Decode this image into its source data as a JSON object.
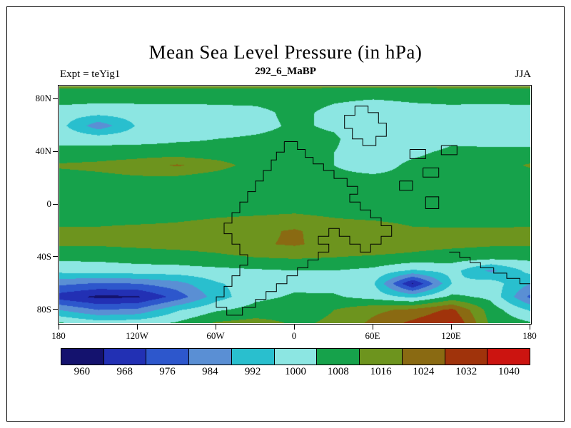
{
  "header": {
    "title": "Mean Sea Level Pressure (in hPa)",
    "subtitle": "292_6_MaBP",
    "experiment_label": "Expt = teYig1",
    "season_label": "JJA"
  },
  "chart_data": {
    "type": "heatmap",
    "subtype": "filled-contour-map",
    "title": "Mean Sea Level Pressure (in hPa)",
    "subtitle": "292_6_MaBP",
    "experiment": "teYig1",
    "season": "JJA",
    "units": "hPa",
    "lon_range": [
      -180,
      180
    ],
    "lat_range": [
      -90,
      90
    ],
    "x_tick_labels": [
      "180",
      "120W",
      "60W",
      "0",
      "60E",
      "120E",
      "180"
    ],
    "x_tick_lons": [
      -180,
      -120,
      -60,
      0,
      60,
      120,
      180
    ],
    "y_tick_labels": [
      "80N",
      "40N",
      "0",
      "40S",
      "80S"
    ],
    "y_tick_lats": [
      80,
      40,
      0,
      -40,
      -80
    ],
    "colorbar": {
      "tick_labels": [
        "960",
        "968",
        "976",
        "984",
        "992",
        "1000",
        "1008",
        "1016",
        "1024",
        "1032",
        "1040"
      ],
      "tick_values": [
        960,
        968,
        976,
        984,
        992,
        1000,
        1008,
        1016,
        1024,
        1032,
        1040
      ],
      "colors": [
        "#14126e",
        "#2230b4",
        "#2d57cc",
        "#5a8fd4",
        "#29bfce",
        "#8ce6e2",
        "#16a24b",
        "#6d941e",
        "#8a6a12",
        "#a0330b",
        "#cc1410"
      ]
    },
    "level_boundaries_hpa": [
      964,
      972,
      980,
      988,
      996,
      1004,
      1012,
      1020,
      1028,
      1036
    ],
    "grid": {
      "lons": [
        -180,
        -150,
        -120,
        -90,
        -60,
        -30,
        0,
        30,
        60,
        90,
        120,
        150,
        180
      ],
      "lats": [
        90,
        80,
        70,
        60,
        50,
        40,
        30,
        20,
        10,
        0,
        -10,
        -20,
        -30,
        -40,
        -50,
        -60,
        -70,
        -80,
        -90
      ],
      "values_hpa": [
        [
          1013,
          1013,
          1013,
          1013,
          1013,
          1013,
          1013,
          1013,
          1013,
          1013,
          1013,
          1013,
          1013
        ],
        [
          1007,
          1006,
          1006,
          1006,
          1006,
          1006,
          1007,
          1005,
          1004,
          1005,
          1006,
          1006,
          1007
        ],
        [
          1000,
          999,
          1000,
          1000,
          1001,
          1002,
          1006,
          1002,
          999,
          1001,
          1001,
          1000,
          1000
        ],
        [
          999,
          983,
          997,
          999,
          1000,
          1002,
          1005,
          1003,
          998,
          999,
          1001,
          999,
          999
        ],
        [
          1002,
          1001,
          1001,
          1003,
          1004,
          1005,
          1006,
          1005,
          999,
          1000,
          1003,
          1001,
          1001
        ],
        [
          1006,
          1007,
          1008,
          1007,
          1006,
          1006,
          1006,
          1004,
          1001,
          1003,
          1005,
          1006,
          1006
        ],
        [
          1013,
          1014,
          1016,
          1021,
          1016,
          1008,
          1006,
          1004,
          1002,
          1005,
          1006,
          1008,
          1013
        ],
        [
          1009,
          1010,
          1011,
          1010,
          1007,
          1005,
          1005,
          1005,
          1005,
          1005,
          1005,
          1006,
          1008
        ],
        [
          1006,
          1006,
          1005,
          1005,
          1005,
          1005,
          1006,
          1005,
          1005,
          1005,
          1005,
          1006,
          1006
        ],
        [
          1006,
          1006,
          1006,
          1007,
          1007,
          1007,
          1008,
          1007,
          1006,
          1005,
          1005,
          1006,
          1006
        ],
        [
          1010,
          1010,
          1010,
          1011,
          1012,
          1013,
          1014,
          1012,
          1011,
          1010,
          1009,
          1009,
          1010
        ],
        [
          1013,
          1013,
          1014,
          1014,
          1015,
          1018,
          1021,
          1016,
          1016,
          1013,
          1013,
          1013,
          1013
        ],
        [
          1013,
          1013,
          1014,
          1015,
          1016,
          1019,
          1021,
          1017,
          1017,
          1015,
          1014,
          1013,
          1013
        ],
        [
          1006,
          1006,
          1007,
          1008,
          1010,
          1012,
          1013,
          1012,
          1011,
          1010,
          1008,
          1007,
          1006
        ],
        [
          999,
          1000,
          1001,
          1001,
          1002,
          1003,
          1004,
          1004,
          1002,
          995,
          999,
          986,
          999
        ],
        [
          982,
          979,
          980,
          985,
          995,
          1000,
          1002,
          1001,
          997,
          963,
          996,
          1000,
          988
        ],
        [
          968,
          962,
          963,
          975,
          992,
          1002,
          1005,
          1005,
          1001,
          994,
          1006,
          1002,
          978
        ],
        [
          988,
          980,
          982,
          995,
          1003,
          1007,
          1009,
          1012,
          1018,
          1022,
          1030,
          1008,
          995
        ],
        [
          1005,
          1000,
          1001,
          1005,
          1013,
          1015,
          1011,
          1013,
          1022,
          1030,
          1037,
          1010,
          1005
        ]
      ]
    },
    "coastlines": [
      [
        [
          -8,
          48
        ],
        [
          2,
          48
        ],
        [
          2,
          42
        ],
        [
          8,
          42
        ],
        [
          8,
          36
        ],
        [
          14,
          36
        ],
        [
          14,
          31
        ],
        [
          22,
          31
        ],
        [
          22,
          26
        ],
        [
          30,
          26
        ],
        [
          30,
          20
        ],
        [
          40,
          20
        ],
        [
          40,
          14
        ],
        [
          48,
          14
        ],
        [
          48,
          8
        ],
        [
          42,
          8
        ],
        [
          42,
          2
        ],
        [
          50,
          2
        ],
        [
          50,
          -4
        ],
        [
          58,
          -4
        ],
        [
          58,
          -10
        ],
        [
          66,
          -10
        ],
        [
          66,
          -16
        ],
        [
          74,
          -16
        ],
        [
          74,
          -24
        ],
        [
          66,
          -24
        ],
        [
          66,
          -30
        ],
        [
          58,
          -30
        ],
        [
          58,
          -36
        ],
        [
          50,
          -36
        ],
        [
          50,
          -30
        ],
        [
          42,
          -30
        ],
        [
          42,
          -24
        ],
        [
          34,
          -24
        ],
        [
          34,
          -18
        ],
        [
          26,
          -18
        ],
        [
          26,
          -24
        ],
        [
          18,
          -24
        ],
        [
          18,
          -30
        ],
        [
          26,
          -30
        ],
        [
          26,
          -36
        ],
        [
          18,
          -36
        ],
        [
          18,
          -42
        ],
        [
          10,
          -42
        ],
        [
          10,
          -48
        ],
        [
          2,
          -48
        ],
        [
          2,
          -54
        ],
        [
          -6,
          -54
        ],
        [
          -6,
          -60
        ],
        [
          -14,
          -60
        ],
        [
          -14,
          -66
        ],
        [
          -22,
          -66
        ],
        [
          -22,
          -72
        ],
        [
          -30,
          -72
        ],
        [
          -30,
          -78
        ],
        [
          -40,
          -78
        ],
        [
          -40,
          -84
        ],
        [
          -52,
          -84
        ],
        [
          -52,
          -78
        ],
        [
          -60,
          -78
        ],
        [
          -60,
          -70
        ],
        [
          -54,
          -70
        ],
        [
          -54,
          -62
        ],
        [
          -48,
          -62
        ],
        [
          -48,
          -54
        ],
        [
          -42,
          -54
        ],
        [
          -42,
          -46
        ],
        [
          -36,
          -46
        ],
        [
          -36,
          -38
        ],
        [
          -42,
          -38
        ],
        [
          -42,
          -30
        ],
        [
          -48,
          -30
        ],
        [
          -48,
          -22
        ],
        [
          -54,
          -22
        ],
        [
          -54,
          -14
        ],
        [
          -48,
          -14
        ],
        [
          -48,
          -6
        ],
        [
          -42,
          -6
        ],
        [
          -42,
          2
        ],
        [
          -36,
          2
        ],
        [
          -36,
          10
        ],
        [
          -30,
          10
        ],
        [
          -30,
          18
        ],
        [
          -24,
          18
        ],
        [
          -24,
          26
        ],
        [
          -18,
          26
        ],
        [
          -18,
          34
        ],
        [
          -14,
          34
        ],
        [
          -14,
          40
        ],
        [
          -8,
          40
        ],
        [
          -8,
          48
        ]
      ],
      [
        [
          46,
          75
        ],
        [
          56,
          75
        ],
        [
          56,
          70
        ],
        [
          64,
          70
        ],
        [
          64,
          62
        ],
        [
          70,
          62
        ],
        [
          70,
          52
        ],
        [
          62,
          52
        ],
        [
          62,
          45
        ],
        [
          52,
          45
        ],
        [
          52,
          50
        ],
        [
          44,
          50
        ],
        [
          44,
          58
        ],
        [
          38,
          58
        ],
        [
          38,
          68
        ],
        [
          46,
          68
        ],
        [
          46,
          75
        ]
      ],
      [
        [
          88,
          42
        ],
        [
          100,
          42
        ],
        [
          100,
          35
        ],
        [
          88,
          35
        ],
        [
          88,
          42
        ]
      ],
      [
        [
          112,
          45
        ],
        [
          124,
          45
        ],
        [
          124,
          38
        ],
        [
          112,
          38
        ],
        [
          112,
          45
        ]
      ],
      [
        [
          98,
          28
        ],
        [
          110,
          28
        ],
        [
          110,
          21
        ],
        [
          98,
          21
        ],
        [
          98,
          28
        ]
      ],
      [
        [
          80,
          18
        ],
        [
          90,
          18
        ],
        [
          90,
          11
        ],
        [
          80,
          11
        ],
        [
          80,
          18
        ]
      ],
      [
        [
          100,
          6
        ],
        [
          110,
          6
        ],
        [
          110,
          -3
        ],
        [
          100,
          -3
        ],
        [
          100,
          6
        ]
      ],
      [
        [
          118,
          -36
        ],
        [
          126,
          -36
        ],
        [
          126,
          -40
        ],
        [
          134,
          -40
        ],
        [
          134,
          -44
        ],
        [
          142,
          -44
        ],
        [
          142,
          -48
        ],
        [
          152,
          -48
        ],
        [
          152,
          -52
        ],
        [
          162,
          -52
        ],
        [
          162,
          -56
        ],
        [
          172,
          -56
        ],
        [
          172,
          -60
        ],
        [
          180,
          -60
        ]
      ]
    ]
  }
}
